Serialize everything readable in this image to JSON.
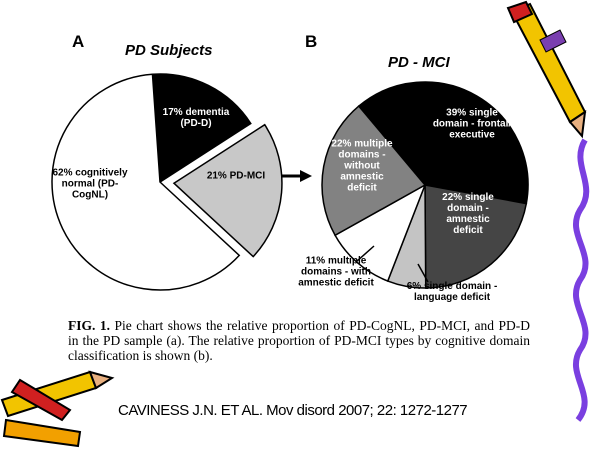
{
  "slide": {
    "caption_label": "FIG. 1.",
    "caption_text": "Pie chart shows the relative proportion of PD-CogNL, PD-MCI, and PD-D in the PD sample (a). The relative proportion of PD-MCI types by cognitive domain classification is shown (b).",
    "citation": "CAVINESS J.N.  ET AL. Mov disord 2007; 22: 1272-1277"
  },
  "chart_data": [
    {
      "type": "pie",
      "panel": "A",
      "title": "PD Subjects",
      "categories": [
        "dementia (PD-D)",
        "PD-MCI",
        "cognitively normal (PD-CogNL)"
      ],
      "values": [
        17,
        21,
        62
      ],
      "value_labels": [
        "17%",
        "21%",
        "62%"
      ],
      "colors": [
        "#000000",
        "#c8c8c8",
        "#ffffff"
      ],
      "exploded": [
        false,
        true,
        false
      ]
    },
    {
      "type": "pie",
      "panel": "B",
      "title": "PD - MCI",
      "categories": [
        "single domain - frontal/ executive",
        "single domain - amnestic deficit",
        "single domain - language deficit",
        "multiple domains - with amnestic deficit",
        "multiple domains - without amnestic deficit"
      ],
      "values": [
        39,
        22,
        6,
        11,
        22
      ],
      "value_labels": [
        "39%",
        "22%",
        "6%",
        "11%",
        "22%"
      ],
      "colors": [
        "#000000",
        "#454545",
        "#c4c4c4",
        "#ffffff",
        "#828282"
      ],
      "exploded": [
        false,
        false,
        false,
        false,
        false
      ]
    }
  ]
}
